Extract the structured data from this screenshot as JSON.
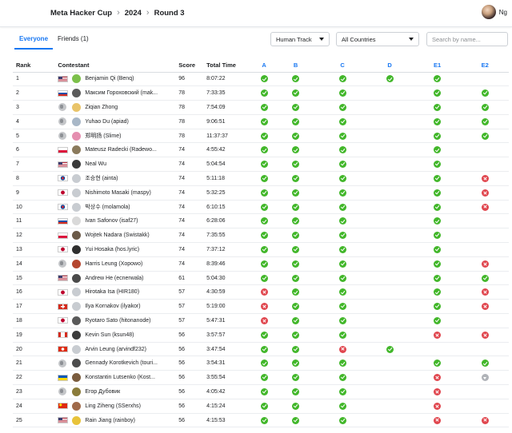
{
  "header": {
    "crumbs": [
      "Meta Hacker Cup",
      "2024",
      "Round 3"
    ],
    "user_name": "Ng"
  },
  "tabs": [
    {
      "label": "Everyone",
      "active": true
    },
    {
      "label": "Friends (1)",
      "active": false
    }
  ],
  "filters": {
    "track": "Human Track",
    "country": "All Countries",
    "search_placeholder": "Search by name..."
  },
  "columns": {
    "rank": "Rank",
    "contestant": "Contestant",
    "score": "Score",
    "time": "Total Time",
    "problems": [
      "A",
      "B",
      "C",
      "D",
      "E1",
      "E2"
    ]
  },
  "colors": {
    "accent": "#1877f2",
    "correct": "#42b72a",
    "wrong": "#e0464e",
    "pending": "#b0b3b8"
  },
  "rows": [
    {
      "rank": "1",
      "flag": "us",
      "avatar": "#7cc04a",
      "name": "Benjamin Qi (Benq)",
      "score": "96",
      "time": "8:07:22",
      "res": [
        "ok",
        "ok",
        "ok",
        "ok",
        "ok",
        ""
      ]
    },
    {
      "rank": "2",
      "flag": "ru",
      "avatar": "#5b5b5b",
      "name": "Максим Гороховский (mak...",
      "score": "78",
      "time": "7:33:35",
      "res": [
        "ok",
        "ok",
        "ok",
        "",
        "ok",
        "ok"
      ]
    },
    {
      "rank": "3",
      "flag": "globe",
      "avatar": "#e9c46a",
      "name": "Ziqian Zhong",
      "score": "78",
      "time": "7:54:09",
      "res": [
        "ok",
        "ok",
        "ok",
        "",
        "ok",
        "ok"
      ]
    },
    {
      "rank": "4",
      "flag": "globe",
      "avatar": "#a8b7c7",
      "name": "Yuhao Du (apiad)",
      "score": "78",
      "time": "9:06:51",
      "res": [
        "ok",
        "ok",
        "ok",
        "",
        "ok",
        "ok"
      ]
    },
    {
      "rank": "5",
      "flag": "globe",
      "avatar": "#e58fb0",
      "name": "郑明扬 (Slime)",
      "score": "78",
      "time": "11:37:37",
      "res": [
        "ok",
        "ok",
        "ok",
        "",
        "ok",
        "ok"
      ]
    },
    {
      "rank": "6",
      "flag": "pl",
      "avatar": "#8a7a5c",
      "name": "Mateusz Radecki (Radewo...",
      "score": "74",
      "time": "4:55:42",
      "res": [
        "ok",
        "ok",
        "ok",
        "",
        "ok",
        ""
      ]
    },
    {
      "rank": "7",
      "flag": "us",
      "avatar": "#3a3a3a",
      "name": "Neal Wu",
      "score": "74",
      "time": "5:04:54",
      "res": [
        "ok",
        "ok",
        "ok",
        "",
        "ok",
        ""
      ]
    },
    {
      "rank": "8",
      "flag": "kr",
      "avatar": "#c8ccd1",
      "name": "조승현 (ainta)",
      "score": "74",
      "time": "5:11:18",
      "res": [
        "ok",
        "ok",
        "ok",
        "",
        "ok",
        "bad"
      ]
    },
    {
      "rank": "9",
      "flag": "jp",
      "avatar": "#c8ccd1",
      "name": "Nishimoto Masaki (maspy)",
      "score": "74",
      "time": "5:32:25",
      "res": [
        "ok",
        "ok",
        "ok",
        "",
        "ok",
        "bad"
      ]
    },
    {
      "rank": "10",
      "flag": "kr",
      "avatar": "#c8ccd1",
      "name": "박상수 (molamola)",
      "score": "74",
      "time": "6:10:15",
      "res": [
        "ok",
        "ok",
        "ok",
        "",
        "ok",
        "bad"
      ]
    },
    {
      "rank": "11",
      "flag": "ru",
      "avatar": "#d9d9d9",
      "name": "Ivan Safonov (isaf27)",
      "score": "74",
      "time": "6:28:06",
      "res": [
        "ok",
        "ok",
        "ok",
        "",
        "ok",
        ""
      ]
    },
    {
      "rank": "12",
      "flag": "pl",
      "avatar": "#6b5a48",
      "name": "Wojtek Nadara (Swistakk)",
      "score": "74",
      "time": "7:35:55",
      "res": [
        "ok",
        "ok",
        "ok",
        "",
        "ok",
        ""
      ]
    },
    {
      "rank": "13",
      "flag": "jp",
      "avatar": "#2f2f2f",
      "name": "Yui Hosaka (hos.lyric)",
      "score": "74",
      "time": "7:37:12",
      "res": [
        "ok",
        "ok",
        "ok",
        "",
        "ok",
        ""
      ]
    },
    {
      "rank": "14",
      "flag": "globe",
      "avatar": "#b5462f",
      "name": "Harris Leung (Xopowo)",
      "score": "74",
      "time": "8:39:46",
      "res": [
        "ok",
        "ok",
        "ok",
        "",
        "ok",
        "bad"
      ]
    },
    {
      "rank": "15",
      "flag": "us",
      "avatar": "#4a4a4a",
      "name": "Andrew He (ecnerwala)",
      "score": "61",
      "time": "5:04:30",
      "res": [
        "ok",
        "ok",
        "ok",
        "",
        "ok",
        "ok"
      ]
    },
    {
      "rank": "16",
      "flag": "jp",
      "avatar": "#c8ccd1",
      "name": "Hirotaka Isa (HIR180)",
      "score": "57",
      "time": "4:30:59",
      "res": [
        "bad",
        "ok",
        "ok",
        "",
        "ok",
        "bad"
      ]
    },
    {
      "rank": "17",
      "flag": "ch",
      "avatar": "#c8ccd1",
      "name": "Ilya Kornakov (ilyakor)",
      "score": "57",
      "time": "5:19:00",
      "res": [
        "bad",
        "ok",
        "ok",
        "",
        "ok",
        "bad"
      ]
    },
    {
      "rank": "18",
      "flag": "jp",
      "avatar": "#5a5a5a",
      "name": "Ryotaro Sato (hitonanode)",
      "score": "57",
      "time": "5:47:31",
      "res": [
        "bad",
        "ok",
        "ok",
        "",
        "ok",
        ""
      ]
    },
    {
      "rank": "19",
      "flag": "ca",
      "avatar": "#3c3c3c",
      "name": "Kevin Sun (ksun48)",
      "score": "56",
      "time": "3:57:57",
      "res": [
        "ok",
        "ok",
        "ok",
        "",
        "bad",
        "bad"
      ]
    },
    {
      "rank": "20",
      "flag": "hk",
      "avatar": "#c8ccd1",
      "name": "Arvin Leung (arvindf232)",
      "score": "56",
      "time": "3:47:54",
      "res": [
        "ok",
        "ok",
        "bad",
        "ok",
        "",
        ""
      ]
    },
    {
      "rank": "21",
      "flag": "globe",
      "avatar": "#4d4d4d",
      "name": "Gennady Korotkevich (touri...",
      "score": "56",
      "time": "3:54:31",
      "res": [
        "ok",
        "ok",
        "ok",
        "",
        "ok",
        "ok"
      ]
    },
    {
      "rank": "22",
      "flag": "ua",
      "avatar": "#7a5c3e",
      "name": "Konstantin Lutsenko (Kost...",
      "score": "56",
      "time": "3:55:54",
      "res": [
        "ok",
        "ok",
        "ok",
        "",
        "bad",
        "pend"
      ]
    },
    {
      "rank": "23",
      "flag": "globe",
      "avatar": "#8a7b3a",
      "name": "Егор Дубовик",
      "score": "56",
      "time": "4:05:42",
      "res": [
        "ok",
        "ok",
        "ok",
        "",
        "bad",
        ""
      ]
    },
    {
      "rank": "24",
      "flag": "cn",
      "avatar": "#a06a4a",
      "name": "Ling Ziheng (SSerxhs)",
      "score": "56",
      "time": "4:15:24",
      "res": [
        "ok",
        "ok",
        "ok",
        "",
        "bad",
        ""
      ]
    },
    {
      "rank": "25",
      "flag": "us",
      "avatar": "#e8c33a",
      "name": "Rain Jiang (rainboy)",
      "score": "56",
      "time": "4:15:53",
      "res": [
        "ok",
        "ok",
        "ok",
        "",
        "bad",
        "bad"
      ]
    }
  ]
}
